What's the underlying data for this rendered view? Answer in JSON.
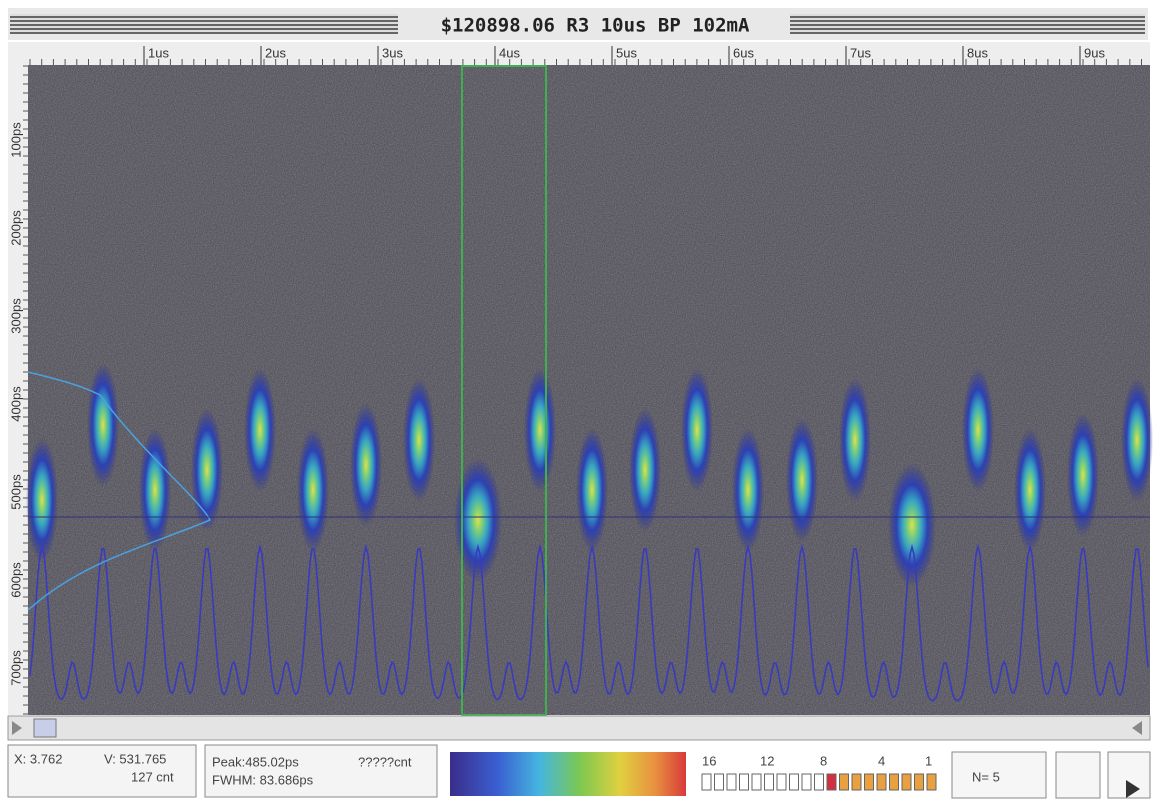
{
  "header": {
    "title": "$120898.06 R3 10us BP 102mA"
  },
  "time_axis": {
    "labels": [
      "1us",
      "2us",
      "3us",
      "4us",
      "5us",
      "6us",
      "7us",
      "8us",
      "9us"
    ]
  },
  "delay_axis": {
    "labels": [
      "100ps",
      "200ps",
      "300ps",
      "400ps",
      "500ps",
      "600ps",
      "700ps"
    ]
  },
  "status": {
    "cursor": {
      "x": "X: 3.762",
      "v": "V: 531.765",
      "count": "127  cnt"
    },
    "fit": {
      "peak": "Peak:485.02ps",
      "peak_count": "?????cnt",
      "fwhm": "FWHM:  83.686ps"
    },
    "scale_labels": [
      "16",
      "12",
      "8",
      "4",
      "1"
    ],
    "frame": "N= 5"
  }
}
